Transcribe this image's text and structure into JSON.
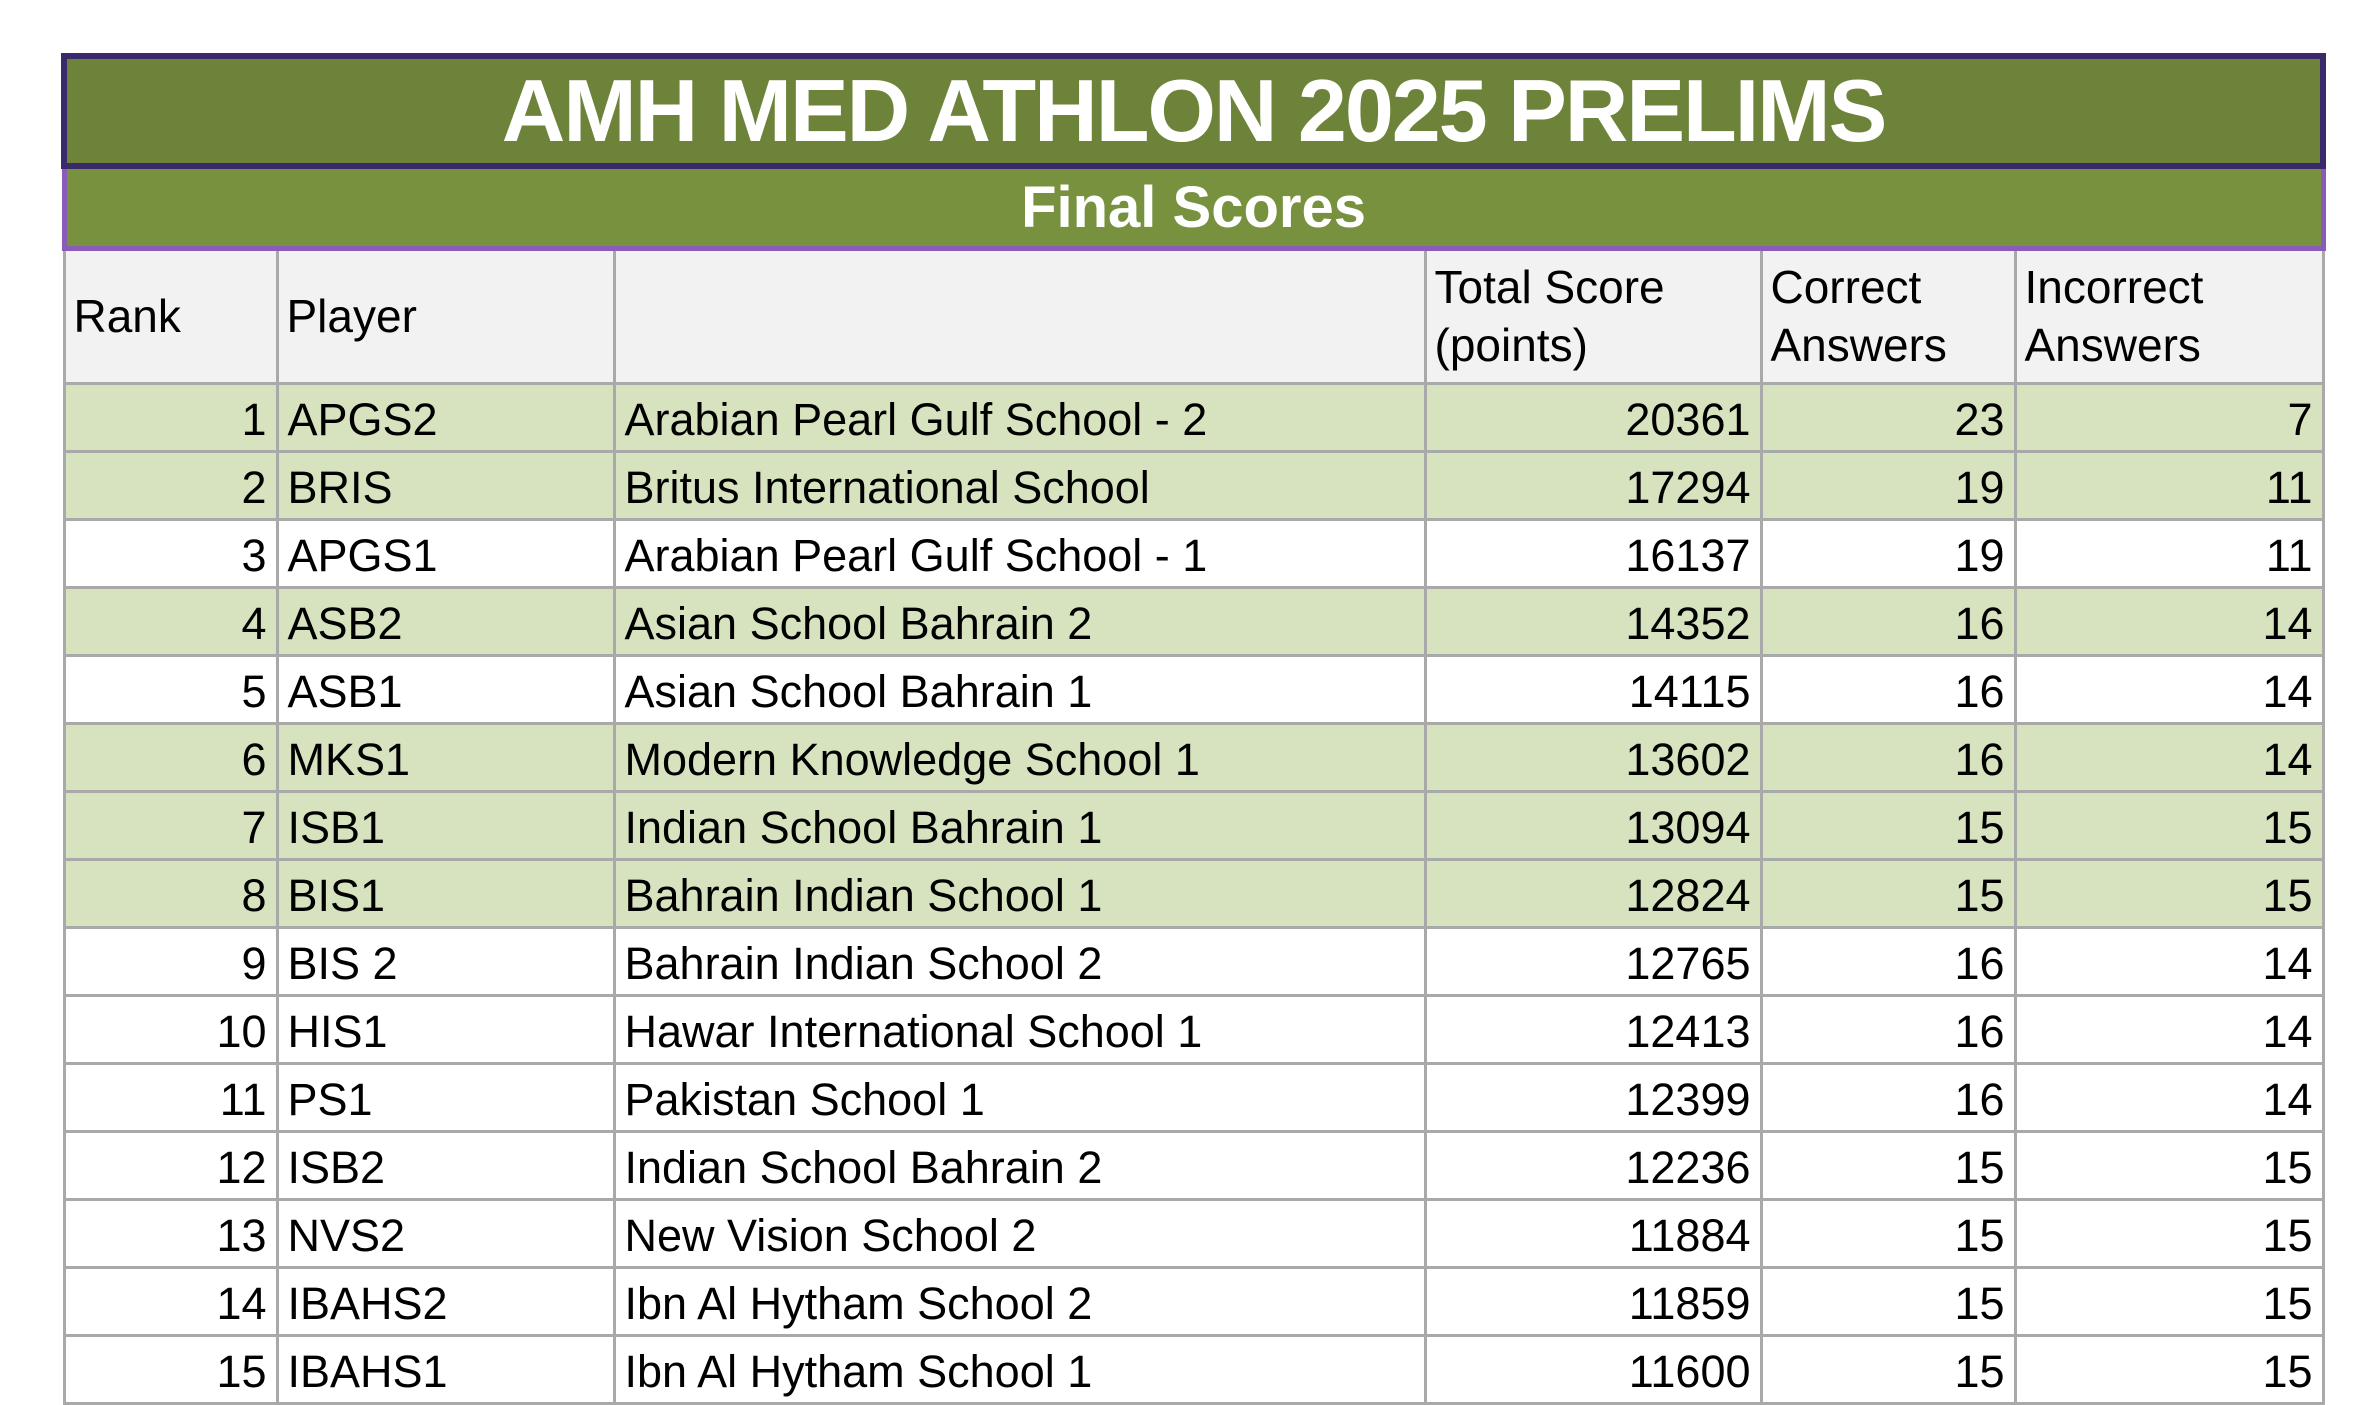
{
  "header": {
    "title": "AMH MED ATHLON 2025 PRELIMS",
    "subtitle": "Final Scores"
  },
  "columns": {
    "rank": "Rank",
    "player": "Player",
    "school": "",
    "total_score": "Total Score (points)",
    "correct": "Correct Answers",
    "incorrect": "Incorrect Answers"
  },
  "rows": [
    {
      "rank": "1",
      "player": "APGS2",
      "school": "Arabian Pearl Gulf School - 2",
      "total_score": "20361",
      "correct": "23",
      "incorrect": "7",
      "highlighted": true
    },
    {
      "rank": "2",
      "player": "BRIS",
      "school": "Britus International School",
      "total_score": "17294",
      "correct": "19",
      "incorrect": "11",
      "highlighted": true
    },
    {
      "rank": "3",
      "player": "APGS1",
      "school": "Arabian Pearl Gulf School - 1",
      "total_score": "16137",
      "correct": "19",
      "incorrect": "11",
      "highlighted": false
    },
    {
      "rank": "4",
      "player": "ASB2",
      "school": "Asian School Bahrain 2",
      "total_score": "14352",
      "correct": "16",
      "incorrect": "14",
      "highlighted": true
    },
    {
      "rank": "5",
      "player": "ASB1",
      "school": "Asian School Bahrain 1",
      "total_score": "14115",
      "correct": "16",
      "incorrect": "14",
      "highlighted": false
    },
    {
      "rank": "6",
      "player": "MKS1",
      "school": "Modern Knowledge School 1",
      "total_score": "13602",
      "correct": "16",
      "incorrect": "14",
      "highlighted": true
    },
    {
      "rank": "7",
      "player": "ISB1",
      "school": "Indian School Bahrain 1",
      "total_score": "13094",
      "correct": "15",
      "incorrect": "15",
      "highlighted": true
    },
    {
      "rank": "8",
      "player": "BIS1",
      "school": "Bahrain Indian School 1",
      "total_score": "12824",
      "correct": "15",
      "incorrect": "15",
      "highlighted": true
    },
    {
      "rank": "9",
      "player": "BIS 2",
      "school": "Bahrain Indian School 2",
      "total_score": "12765",
      "correct": "16",
      "incorrect": "14",
      "highlighted": false
    },
    {
      "rank": "10",
      "player": "HIS1",
      "school": "Hawar International School 1",
      "total_score": "12413",
      "correct": "16",
      "incorrect": "14",
      "highlighted": false
    },
    {
      "rank": "11",
      "player": "PS1",
      "school": "Pakistan School 1",
      "total_score": "12399",
      "correct": "16",
      "incorrect": "14",
      "highlighted": false
    },
    {
      "rank": "12",
      "player": "ISB2",
      "school": "Indian School Bahrain 2",
      "total_score": "12236",
      "correct": "15",
      "incorrect": "15",
      "highlighted": false
    },
    {
      "rank": "13",
      "player": "NVS2",
      "school": "New Vision School 2",
      "total_score": "11884",
      "correct": "15",
      "incorrect": "15",
      "highlighted": false
    },
    {
      "rank": "14",
      "player": "IBAHS2",
      "school": "Ibn Al Hytham School 2",
      "total_score": "11859",
      "correct": "15",
      "incorrect": "15",
      "highlighted": false
    },
    {
      "rank": "15",
      "player": "IBAHS1",
      "school": "Ibn Al Hytham School 1",
      "total_score": "11600",
      "correct": "15",
      "incorrect": "15",
      "highlighted": false
    }
  ],
  "colors": {
    "band1": "#6d8339",
    "band2": "#77913e",
    "purple_dark": "#3a2a6b",
    "purple_light": "#8a5bb8",
    "header_bg": "#f2f2f2",
    "grid": "#a9a9a9",
    "row_green": "#d7e3bf",
    "row_white": "#ffffff",
    "title_text": "#ffffff",
    "text": "#000000"
  }
}
